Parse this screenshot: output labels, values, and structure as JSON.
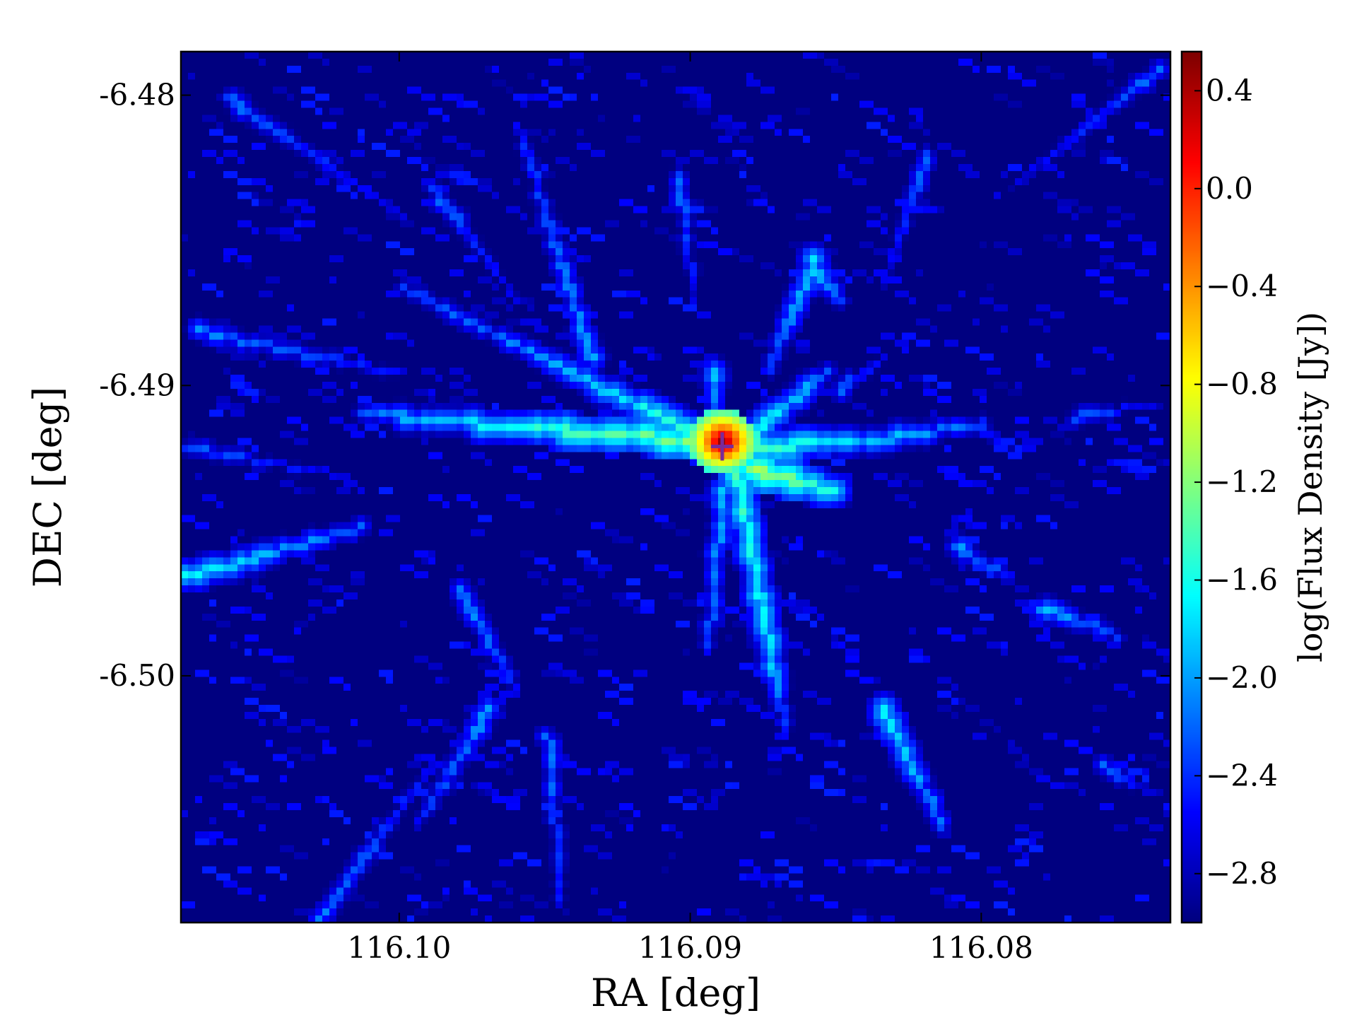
{
  "chart_data": {
    "type": "heatmap",
    "title": "",
    "xlabel": "RA [deg]",
    "ylabel": "DEC [deg]",
    "colorbar_label": "log(Flux Density [Jy])",
    "colormap": "jet",
    "x_axis_inverted": true,
    "xlim": [
      116.1075,
      116.0735
    ],
    "ylim": [
      -6.5085,
      -6.4785
    ],
    "xticks": [
      {
        "value": 116.1,
        "label": "116.10"
      },
      {
        "value": 116.09,
        "label": "116.09"
      },
      {
        "value": 116.08,
        "label": "116.08"
      }
    ],
    "yticks": [
      {
        "value": -6.48,
        "label": "-6.48"
      },
      {
        "value": -6.49,
        "label": "-6.49"
      },
      {
        "value": -6.5,
        "label": "-6.50"
      }
    ],
    "color_range": [
      -3.0,
      0.56
    ],
    "colorbar_ticks": [
      {
        "value": 0.4,
        "label": "0.4"
      },
      {
        "value": 0.0,
        "label": "0.0"
      },
      {
        "value": -0.4,
        "label": "−0.4"
      },
      {
        "value": -0.8,
        "label": "−0.8"
      },
      {
        "value": -1.2,
        "label": "−1.2"
      },
      {
        "value": -1.6,
        "label": "−1.6"
      },
      {
        "value": -2.0,
        "label": "−2.0"
      },
      {
        "value": -2.4,
        "label": "−2.4"
      },
      {
        "value": -2.8,
        "label": "−2.8"
      }
    ],
    "background_level": -3.0,
    "peak": {
      "ra": 116.089,
      "dec": -6.4918,
      "value": 0.55
    },
    "marker": {
      "ra": 116.0889,
      "dec": -6.4921,
      "symbol": "+",
      "color": "#7a2a9a"
    },
    "streaks": [
      {
        "ra1": 116.09,
        "dec1": -6.4918,
        "ra2": 116.0975,
        "dec2": -6.4912,
        "peak": -1.3
      },
      {
        "ra1": 116.0975,
        "dec1": -6.4912,
        "ra2": 116.1015,
        "dec2": -6.4908,
        "peak": -1.8
      },
      {
        "ra1": 116.09,
        "dec1": -6.4915,
        "ra2": 116.0935,
        "dec2": -6.4898,
        "peak": -1.5
      },
      {
        "ra1": 116.0935,
        "dec1": -6.4898,
        "ra2": 116.1,
        "dec2": -6.4865,
        "peak": -2.0
      },
      {
        "ra1": 116.0935,
        "dec1": -6.489,
        "ra2": 116.096,
        "dec2": -6.481,
        "peak": -2.1
      },
      {
        "ra1": 116.0905,
        "dec1": -6.4825,
        "ra2": 116.09,
        "dec2": -6.487,
        "peak": -2.2
      },
      {
        "ra1": 116.0892,
        "dec1": -6.4895,
        "ra2": 116.0892,
        "dec2": -6.491,
        "peak": -2.0
      },
      {
        "ra1": 116.088,
        "dec1": -6.492,
        "ra2": 116.084,
        "dec2": -6.4918,
        "peak": -1.5
      },
      {
        "ra1": 116.084,
        "dec1": -6.4918,
        "ra2": 116.08,
        "dec2": -6.4912,
        "peak": -1.9
      },
      {
        "ra1": 116.088,
        "dec1": -6.4915,
        "ra2": 116.0855,
        "dec2": -6.4895,
        "peak": -1.7
      },
      {
        "ra1": 116.088,
        "dec1": -6.4928,
        "ra2": 116.0852,
        "dec2": -6.4935,
        "peak": -1.2
      },
      {
        "ra1": 116.0885,
        "dec1": -6.493,
        "ra2": 116.0872,
        "dec2": -6.4998,
        "peak": -1.5
      },
      {
        "ra1": 116.0872,
        "dec1": -6.4998,
        "ra2": 116.0868,
        "dec2": -6.502,
        "peak": -2.1
      },
      {
        "ra1": 116.089,
        "dec1": -6.4935,
        "ra2": 116.0895,
        "dec2": -6.499,
        "peak": -2.0
      },
      {
        "ra1": 116.086,
        "dec1": -6.4855,
        "ra2": 116.085,
        "dec2": -6.487,
        "peak": -1.9
      },
      {
        "ra1": 116.086,
        "dec1": -6.486,
        "ra2": 116.0875,
        "dec2": -6.4895,
        "peak": -2.0
      },
      {
        "ra1": 116.1075,
        "dec1": -6.4965,
        "ra2": 116.1015,
        "dec2": -6.4948,
        "peak": -1.8
      },
      {
        "ra1": 116.098,
        "dec1": -6.497,
        "ra2": 116.096,
        "dec2": -6.5005,
        "peak": -2.1
      },
      {
        "ra1": 116.097,
        "dec1": -6.501,
        "ra2": 116.0995,
        "dec2": -6.505,
        "peak": -2.1
      },
      {
        "ra1": 116.103,
        "dec1": -6.5085,
        "ra2": 116.099,
        "dec2": -6.503,
        "peak": -2.2
      },
      {
        "ra1": 116.0835,
        "dec1": -6.501,
        "ra2": 116.0815,
        "dec2": -6.505,
        "peak": -1.8
      },
      {
        "ra1": 116.081,
        "dec1": -6.4955,
        "ra2": 116.079,
        "dec2": -6.4965,
        "peak": -2.1
      },
      {
        "ra1": 116.078,
        "dec1": -6.4975,
        "ra2": 116.0755,
        "dec2": -6.4985,
        "peak": -2.0
      },
      {
        "ra1": 116.085,
        "dec1": -6.49,
        "ra2": 116.0835,
        "dec2": -6.489,
        "peak": -2.3
      },
      {
        "ra1": 116.077,
        "dec1": -6.491,
        "ra2": 116.074,
        "dec2": -6.4905,
        "peak": -2.3
      },
      {
        "ra1": 116.082,
        "dec1": -6.482,
        "ra2": 116.0835,
        "dec2": -6.4865,
        "peak": -2.3
      },
      {
        "ra1": 116.095,
        "dec1": -6.502,
        "ra2": 116.0945,
        "dec2": -6.508,
        "peak": -2.2
      },
      {
        "ra1": 116.107,
        "dec1": -6.488,
        "ra2": 116.1,
        "dec2": -6.4895,
        "peak": -2.2
      },
      {
        "ra1": 116.1075,
        "dec1": -6.492,
        "ra2": 116.102,
        "dec2": -6.493,
        "peak": -2.3
      },
      {
        "ra1": 116.106,
        "dec1": -6.48,
        "ra2": 116.1,
        "dec2": -6.484,
        "peak": -2.3
      },
      {
        "ra1": 116.099,
        "dec1": -6.483,
        "ra2": 116.096,
        "dec2": -6.487,
        "peak": -2.3
      },
      {
        "ra1": 116.074,
        "dec1": -6.479,
        "ra2": 116.079,
        "dec2": -6.483,
        "peak": -2.3
      },
      {
        "ra1": 116.076,
        "dec1": -6.503,
        "ra2": 116.074,
        "dec2": -6.504,
        "peak": -2.3
      }
    ]
  }
}
